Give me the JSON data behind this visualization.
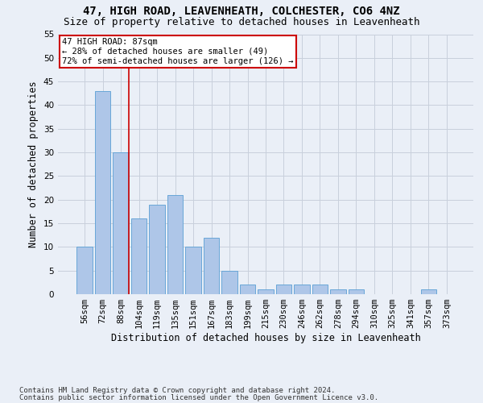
{
  "title_line1": "47, HIGH ROAD, LEAVENHEATH, COLCHESTER, CO6 4NZ",
  "title_line2": "Size of property relative to detached houses in Leavenheath",
  "xlabel": "Distribution of detached houses by size in Leavenheath",
  "ylabel": "Number of detached properties",
  "categories": [
    "56sqm",
    "72sqm",
    "88sqm",
    "104sqm",
    "119sqm",
    "135sqm",
    "151sqm",
    "167sqm",
    "183sqm",
    "199sqm",
    "215sqm",
    "230sqm",
    "246sqm",
    "262sqm",
    "278sqm",
    "294sqm",
    "310sqm",
    "325sqm",
    "341sqm",
    "357sqm",
    "373sqm"
  ],
  "values": [
    10,
    43,
    30,
    16,
    19,
    21,
    10,
    12,
    5,
    2,
    1,
    2,
    2,
    2,
    1,
    1,
    0,
    0,
    0,
    1,
    0
  ],
  "bar_color": "#aec6e8",
  "bar_edge_color": "#5a9fd4",
  "grid_color": "#c8d0dc",
  "background_color": "#eaeff7",
  "annotation_box_text": "47 HIGH ROAD: 87sqm\n← 28% of detached houses are smaller (49)\n72% of semi-detached houses are larger (126) →",
  "annotation_box_color": "#ffffff",
  "annotation_box_edge_color": "#cc0000",
  "vline_color": "#cc0000",
  "vline_x": 2.425,
  "ylim": [
    0,
    55
  ],
  "yticks": [
    0,
    5,
    10,
    15,
    20,
    25,
    30,
    35,
    40,
    45,
    50,
    55
  ],
  "footer_line1": "Contains HM Land Registry data © Crown copyright and database right 2024.",
  "footer_line2": "Contains public sector information licensed under the Open Government Licence v3.0.",
  "title_fontsize": 10,
  "subtitle_fontsize": 9,
  "xlabel_fontsize": 8.5,
  "ylabel_fontsize": 8.5,
  "tick_fontsize": 7.5,
  "annotation_fontsize": 7.5,
  "footer_fontsize": 6.5
}
